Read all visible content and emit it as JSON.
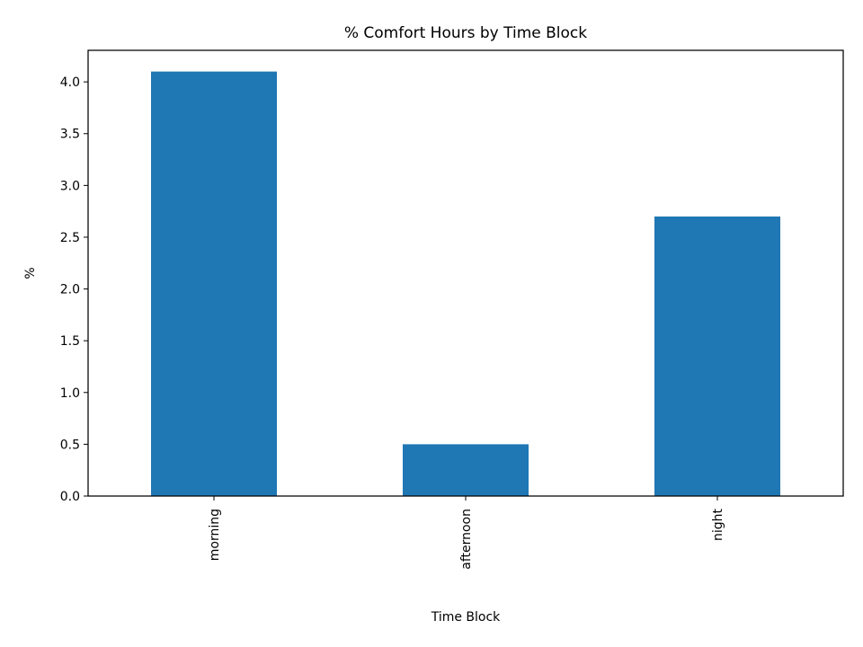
{
  "chart_data": {
    "type": "bar",
    "title": "% Comfort Hours by Time Block",
    "xlabel": "Time Block",
    "ylabel": "%",
    "categories": [
      "morning",
      "afternoon",
      "night"
    ],
    "values": [
      4.1,
      0.5,
      2.7
    ],
    "ylim": [
      0,
      4.305
    ],
    "yticks": [
      "0.0",
      "0.5",
      "1.0",
      "1.5",
      "2.0",
      "2.5",
      "3.0",
      "3.5",
      "4.0"
    ],
    "bar_color": "#1f77b4",
    "grid": false,
    "legend": "none"
  }
}
